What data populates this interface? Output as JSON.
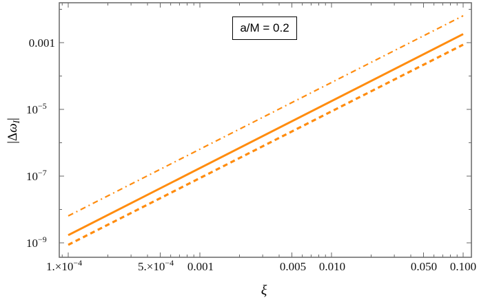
{
  "chart_data": {
    "type": "line",
    "title": "",
    "annotation": "a/M = 0.2",
    "xlabel": "ξ",
    "ylabel": "|Δω_I|",
    "xscale": "log",
    "yscale": "log",
    "xlim": [
      8.75e-05,
      0.12
    ],
    "ylim": [
      4e-10,
      0.02
    ],
    "x_ticks": [
      {
        "value": 0.0001,
        "label": "1.×10⁻⁴"
      },
      {
        "value": 0.0005,
        "label": "5.×10⁻⁴"
      },
      {
        "value": 0.001,
        "label": "0.001"
      },
      {
        "value": 0.005,
        "label": "0.005"
      },
      {
        "value": 0.01,
        "label": "0.010"
      },
      {
        "value": 0.05,
        "label": "0.050"
      },
      {
        "value": 0.1,
        "label": "0.100"
      }
    ],
    "y_ticks": [
      {
        "value": 0.001,
        "label": "0.001"
      },
      {
        "value": 1e-05,
        "label": "10⁻⁵"
      },
      {
        "value": 1e-07,
        "label": "10⁻⁷"
      },
      {
        "value": 1e-09,
        "label": "10⁻⁹"
      }
    ],
    "grid": false,
    "series": [
      {
        "name": "dot-dashed",
        "style": "dotdash",
        "color": "#ff8c0f",
        "x": [
          0.0001,
          0.1
        ],
        "y": [
          6.4e-09,
          0.0064
        ]
      },
      {
        "name": "solid",
        "style": "solid",
        "color": "#ff8c0f",
        "x": [
          0.0001,
          0.1
        ],
        "y": [
          1.7e-09,
          0.0018
        ]
      },
      {
        "name": "dashed",
        "style": "dashed",
        "color": "#ff8c0f",
        "x": [
          0.0001,
          0.1
        ],
        "y": [
          8.7e-10,
          0.00087
        ]
      }
    ]
  },
  "labels": {
    "annotation": "a/M = 0.2"
  }
}
